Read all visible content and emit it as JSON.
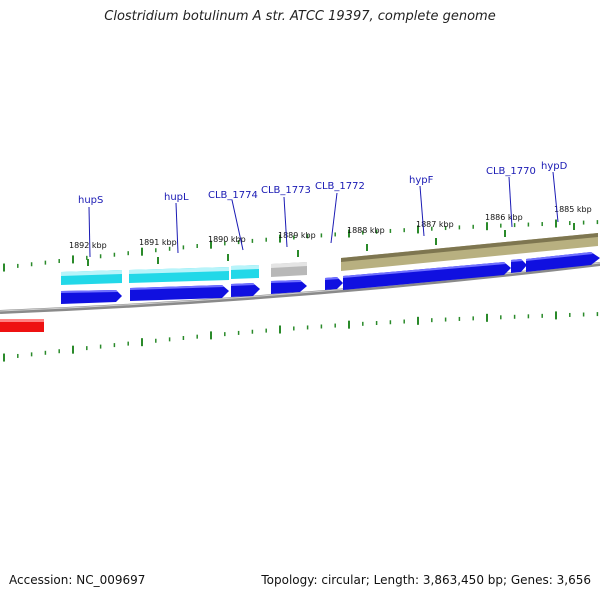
{
  "title": "Clostridium botulinum A str. ATCC 19397, complete genome",
  "footer": {
    "accession": "Accession: NC_009697",
    "summary": "Topology: circular; Length: 3,863,450 bp; Genes: 3,656"
  },
  "colors": {
    "backbone": "#8a8a8a",
    "tick": "#2a8a2a",
    "forward_gene": "#1010e0",
    "cyan_gene": "#22d8e8",
    "gray_gene": "#b8b8b8",
    "khaki_gene": "#b8b080",
    "red_feature": "#ee1111",
    "label": "#1a1ab4"
  },
  "scale_labels": [
    "1892 kbp",
    "1891 kbp",
    "1890 kbp",
    "1889 kbp",
    "1888 kbp",
    "1887 kbp",
    "1886 kbp",
    "1885 kbp"
  ],
  "gene_labels": [
    "hupS",
    "hupL",
    "CLB_1774",
    "CLB_1773",
    "CLB_1772",
    "hypF",
    "CLB_1770",
    "hypD"
  ]
}
